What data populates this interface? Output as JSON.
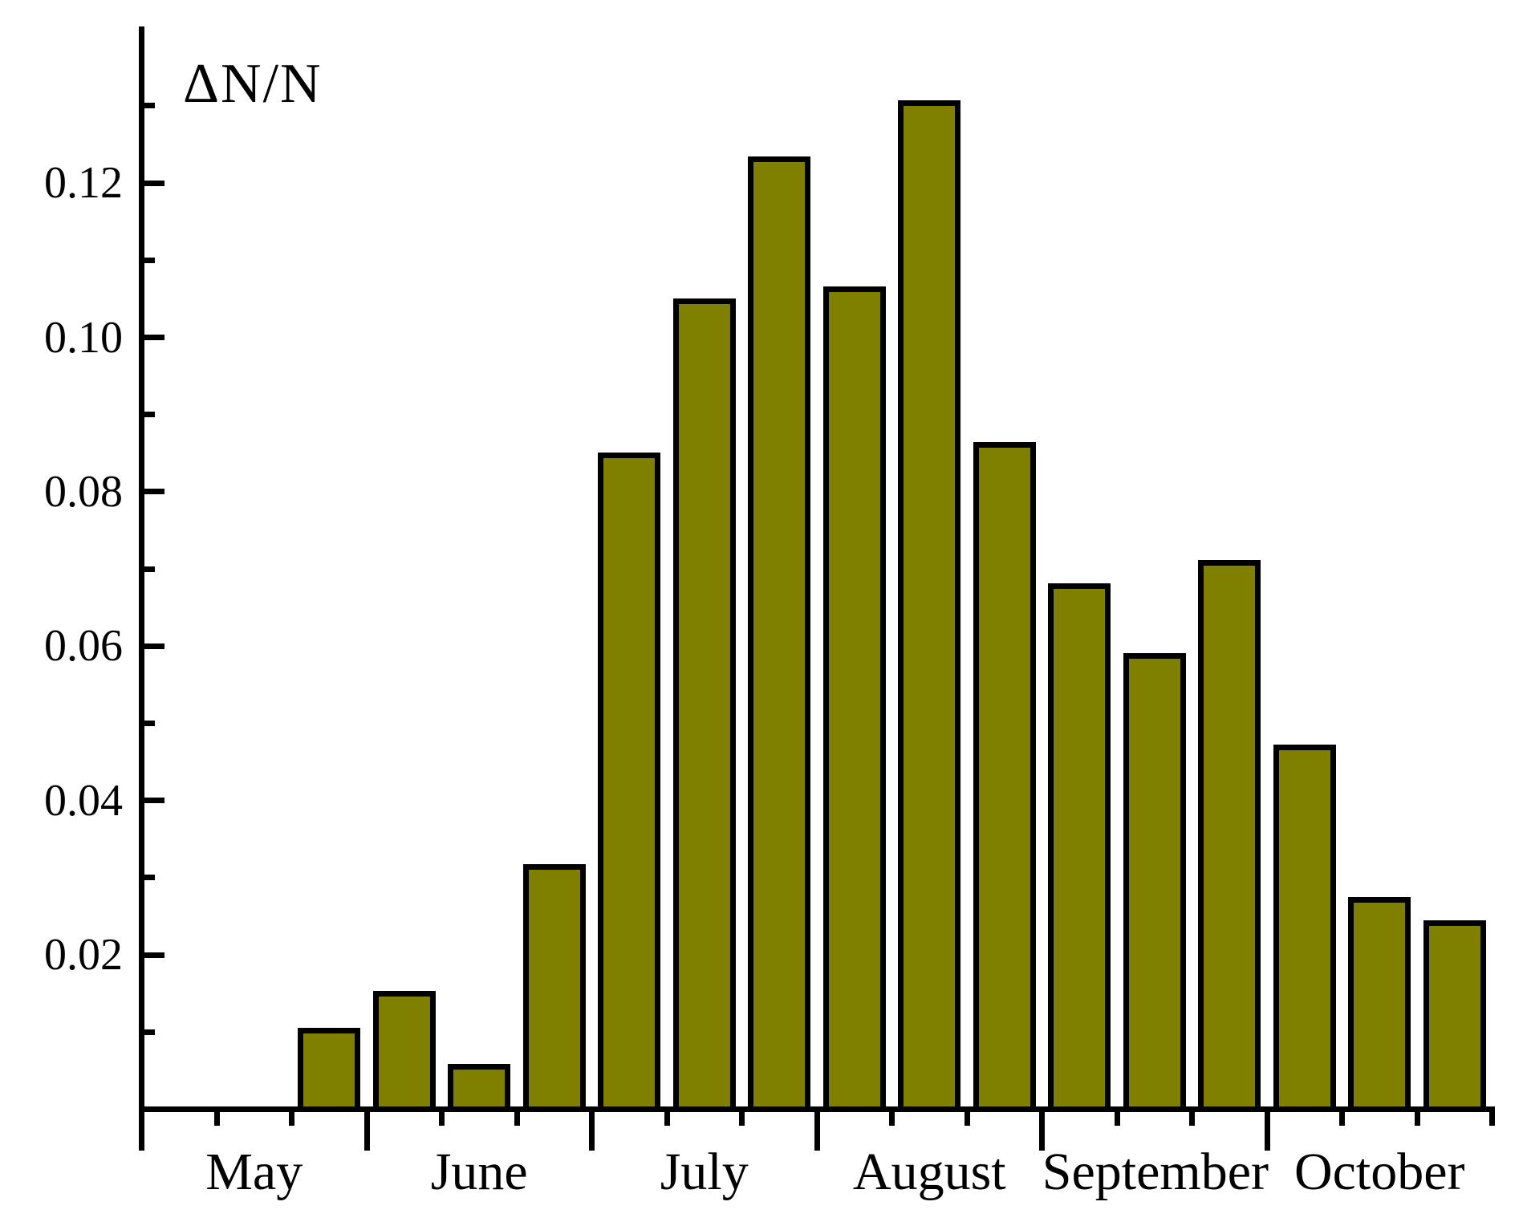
{
  "chart_data": {
    "type": "bar",
    "title": "",
    "ylabel": "ΔN/N",
    "xlabel": "",
    "categories_months": [
      "May",
      "June",
      "July",
      "August",
      "September",
      "October"
    ],
    "decades_per_month": 3,
    "series_note": "one bar per 10-day period (decade); first two decades of May have no bar",
    "values": [
      null,
      null,
      0.0106,
      0.0153,
      0.0059,
      0.0318,
      0.0851,
      0.105,
      0.1234,
      0.1066,
      0.1307,
      0.0864,
      0.0681,
      0.0591,
      0.0712,
      0.0472,
      0.0275,
      0.0245
    ],
    "y_major_ticks": [
      0.02,
      0.04,
      0.06,
      0.08,
      0.1,
      0.12
    ],
    "y_major_tick_labels": [
      "0.02",
      "0.04",
      "0.06",
      "0.08",
      "0.10",
      "0.12"
    ],
    "y_minor_ticks": [
      0.01,
      0.03,
      0.05,
      0.07,
      0.09,
      0.11,
      0.13
    ],
    "ylim": [
      0,
      0.1403
    ],
    "grid": "off",
    "legend": "none",
    "bar_color": "#808000",
    "bar_border_color": "#000000",
    "axis_color": "#000000",
    "background_color": "#ffffff"
  }
}
